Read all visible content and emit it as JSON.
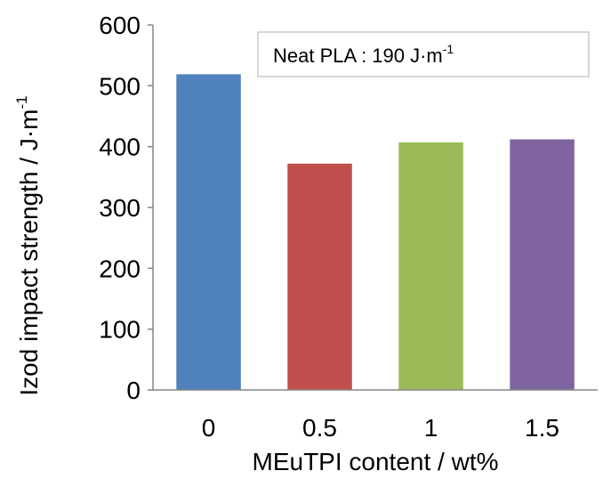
{
  "chart_data": {
    "type": "bar",
    "categories": [
      "0",
      "0.5",
      "1",
      "1.5"
    ],
    "values": [
      519,
      372,
      407,
      412
    ],
    "colors": [
      "#4f81bd",
      "#c0504d",
      "#9bbb59",
      "#8064a2"
    ],
    "xlabel": "MEuTPI content / wt%",
    "ylabel": {
      "main": "Izod impact strength / J·m",
      "superscript": "-1"
    },
    "ylim": [
      0,
      600
    ],
    "yticks": [
      0,
      100,
      200,
      300,
      400,
      500,
      600
    ],
    "grid": false,
    "annotation": {
      "main": "Neat  PLA : 190  J·m",
      "superscript": "-1"
    }
  }
}
